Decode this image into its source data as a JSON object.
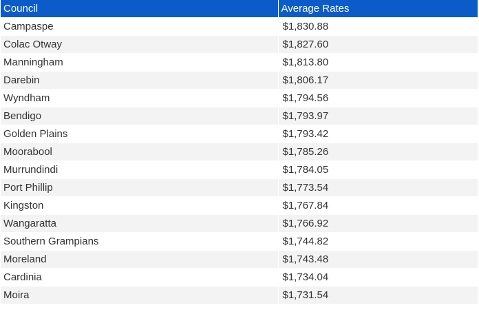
{
  "table": {
    "headers": [
      "Council",
      "Average Rates"
    ],
    "rows": [
      [
        "Campaspe",
        "$1,830.88"
      ],
      [
        "Colac Otway",
        "$1,827.60"
      ],
      [
        "Manningham",
        "$1,813.80"
      ],
      [
        "Darebin",
        "$1,806.17"
      ],
      [
        "Wyndham",
        "$1,794.56"
      ],
      [
        "Bendigo",
        "$1,793.97"
      ],
      [
        "Golden Plains",
        "$1,793.42"
      ],
      [
        "Moorabool",
        "$1,785.26"
      ],
      [
        "Murrundindi",
        "$1,784.05"
      ],
      [
        "Port Phillip",
        "$1,773.54"
      ],
      [
        "Kingston",
        "$1,767.84"
      ],
      [
        "Wangaratta",
        "$1,766.92"
      ],
      [
        "Southern Grampians",
        "$1,744.82"
      ],
      [
        "Moreland",
        "$1,743.48"
      ],
      [
        "Cardinia",
        "$1,734.04"
      ],
      [
        "Moira",
        "$1,731.54"
      ]
    ]
  },
  "colors": {
    "header_bg": "#0b5cc9",
    "header_text": "#ffffff",
    "stripe": "#f3f3f3",
    "cell_text": "#333333"
  }
}
